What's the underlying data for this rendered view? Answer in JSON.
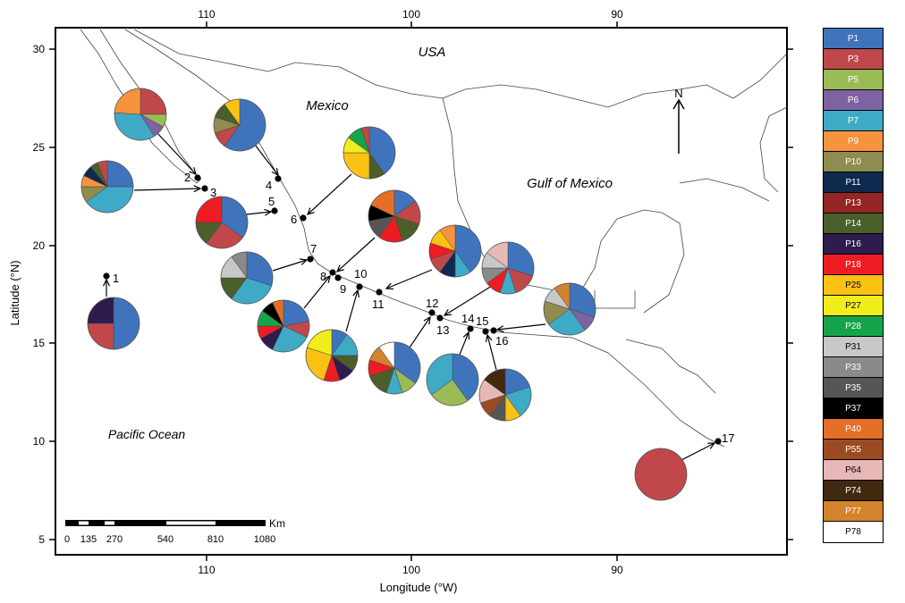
{
  "map": {
    "axes": {
      "x_title": "Longitude (°W)",
      "y_title": "Latitude (°N)",
      "x_ticks": [
        "110",
        "100",
        "90"
      ],
      "y_ticks": [
        "30",
        "25",
        "20",
        "15",
        "10",
        "5"
      ]
    },
    "places": {
      "usa": "USA",
      "mexico": "Mexico",
      "gulf": "Gulf of Mexico",
      "pacific": "Pacific Ocean",
      "north": "N"
    },
    "scale_bar": {
      "unit": "Km",
      "labels": [
        "0",
        "135",
        "270",
        "540",
        "810",
        "1080"
      ]
    },
    "sites": [
      "1",
      "2",
      "3",
      "4",
      "5",
      "6",
      "7",
      "8",
      "9",
      "10",
      "11",
      "12",
      "13",
      "14",
      "15",
      "16",
      "17"
    ]
  },
  "legend": [
    {
      "label": "P1",
      "color": "#3f74bd"
    },
    {
      "label": "P3",
      "color": "#c0484a"
    },
    {
      "label": "P5",
      "color": "#9bbb56"
    },
    {
      "label": "P6",
      "color": "#7e62a2"
    },
    {
      "label": "P7",
      "color": "#3faac6"
    },
    {
      "label": "P9",
      "color": "#f6933e"
    },
    {
      "label": "P10",
      "color": "#8f8c4f"
    },
    {
      "label": "P11",
      "color": "#102a4f"
    },
    {
      "label": "P13",
      "color": "#942524"
    },
    {
      "label": "P14",
      "color": "#4a5f2a"
    },
    {
      "label": "P16",
      "color": "#2d1c4d"
    },
    {
      "label": "P18",
      "color": "#ed1c24"
    },
    {
      "label": "P25",
      "color": "#fcc213"
    },
    {
      "label": "P27",
      "color": "#f0ed1b"
    },
    {
      "label": "P28",
      "color": "#16a44a"
    },
    {
      "label": "P31",
      "color": "#c8c8c8"
    },
    {
      "label": "P33",
      "color": "#8a8a8a"
    },
    {
      "label": "P35",
      "color": "#565656"
    },
    {
      "label": "P37",
      "color": "#000000"
    },
    {
      "label": "P40",
      "color": "#e56f27"
    },
    {
      "label": "P55",
      "color": "#9b4a22"
    },
    {
      "label": "P64",
      "color": "#e8b8b6"
    },
    {
      "label": "P74",
      "color": "#412910"
    },
    {
      "label": "P77",
      "color": "#d3832c"
    },
    {
      "label": "P78",
      "color": "#ffffff"
    }
  ],
  "pies": [
    {
      "site": "1",
      "slices": [
        [
          "P1",
          0.5
        ],
        [
          "P3",
          0.25
        ],
        [
          "P16",
          0.25
        ]
      ]
    },
    {
      "site": "2",
      "slices": [
        [
          "P3",
          0.25
        ],
        [
          "P5",
          0.08
        ],
        [
          "P6",
          0.08
        ],
        [
          "P7",
          0.35
        ],
        [
          "P9",
          0.24
        ]
      ]
    },
    {
      "site": "3",
      "slices": [
        [
          "P1",
          0.25
        ],
        [
          "P7",
          0.4
        ],
        [
          "P10",
          0.1
        ],
        [
          "P9",
          0.07
        ],
        [
          "P11",
          0.07
        ],
        [
          "P14",
          0.05
        ],
        [
          "P3",
          0.06
        ]
      ]
    },
    {
      "site": "4",
      "slices": [
        [
          "P1",
          0.6
        ],
        [
          "P3",
          0.1
        ],
        [
          "P10",
          0.1
        ],
        [
          "P14",
          0.1
        ],
        [
          "P25",
          0.1
        ]
      ]
    },
    {
      "site": "5",
      "slices": [
        [
          "P1",
          0.35
        ],
        [
          "P3",
          0.25
        ],
        [
          "P14",
          0.15
        ],
        [
          "P18",
          0.25
        ]
      ]
    },
    {
      "site": "6",
      "slices": [
        [
          "P1",
          0.4
        ],
        [
          "P14",
          0.1
        ],
        [
          "P25",
          0.25
        ],
        [
          "P27",
          0.1
        ],
        [
          "P28",
          0.1
        ],
        [
          "P3",
          0.05
        ]
      ]
    },
    {
      "site": "7",
      "slices": [
        [
          "P1",
          0.3
        ],
        [
          "P7",
          0.3
        ],
        [
          "P14",
          0.15
        ],
        [
          "P31",
          0.15
        ],
        [
          "P33",
          0.1
        ]
      ]
    },
    {
      "site": "8",
      "slices": [
        [
          "P1",
          0.22
        ],
        [
          "P3",
          0.1
        ],
        [
          "P7",
          0.25
        ],
        [
          "P16",
          0.1
        ],
        [
          "P18",
          0.08
        ],
        [
          "P28",
          0.1
        ],
        [
          "P37",
          0.08
        ],
        [
          "P40",
          0.07
        ]
      ]
    },
    {
      "site": "9",
      "slices": [
        [
          "P1",
          0.15
        ],
        [
          "P3",
          0.15
        ],
        [
          "P14",
          0.15
        ],
        [
          "P18",
          0.15
        ],
        [
          "P35",
          0.12
        ],
        [
          "P37",
          0.1
        ],
        [
          "P40",
          0.18
        ]
      ]
    },
    {
      "site": "10",
      "slices": [
        [
          "P1",
          0.1
        ],
        [
          "P7",
          0.15
        ],
        [
          "P14",
          0.1
        ],
        [
          "P16",
          0.1
        ],
        [
          "P18",
          0.1
        ],
        [
          "P25",
          0.25
        ],
        [
          "P27",
          0.2
        ]
      ]
    },
    {
      "site": "11",
      "slices": [
        [
          "P1",
          0.35
        ],
        [
          "P5",
          0.1
        ],
        [
          "P7",
          0.1
        ],
        [
          "P14",
          0.15
        ],
        [
          "P18",
          0.1
        ],
        [
          "P77",
          0.1
        ],
        [
          "P78",
          0.1
        ]
      ]
    },
    {
      "site": "12",
      "slices": [
        [
          "P1",
          0.4
        ],
        [
          "P7",
          0.1
        ],
        [
          "P11",
          0.1
        ],
        [
          "P3",
          0.1
        ],
        [
          "P18",
          0.1
        ],
        [
          "P25",
          0.1
        ],
        [
          "P9",
          0.1
        ]
      ]
    },
    {
      "site": "13",
      "slices": [
        [
          "P1",
          0.3
        ],
        [
          "P3",
          0.15
        ],
        [
          "P7",
          0.1
        ],
        [
          "P18",
          0.1
        ],
        [
          "P33",
          0.1
        ],
        [
          "P31",
          0.1
        ],
        [
          "P64",
          0.15
        ]
      ]
    },
    {
      "site": "14",
      "slices": [
        [
          "P1",
          0.4
        ],
        [
          "P5",
          0.25
        ],
        [
          "P7",
          0.35
        ]
      ]
    },
    {
      "site": "15",
      "slices": [
        [
          "P1",
          0.2
        ],
        [
          "P7",
          0.2
        ],
        [
          "P25",
          0.1
        ],
        [
          "P35",
          0.1
        ],
        [
          "P55",
          0.1
        ],
        [
          "P64",
          0.15
        ],
        [
          "P74",
          0.15
        ]
      ]
    },
    {
      "site": "16",
      "slices": [
        [
          "P1",
          0.3
        ],
        [
          "P6",
          0.1
        ],
        [
          "P7",
          0.25
        ],
        [
          "P10",
          0.15
        ],
        [
          "P31",
          0.1
        ],
        [
          "P77",
          0.1
        ]
      ]
    },
    {
      "site": "17",
      "slices": [
        [
          "P3",
          1.0
        ]
      ]
    }
  ]
}
